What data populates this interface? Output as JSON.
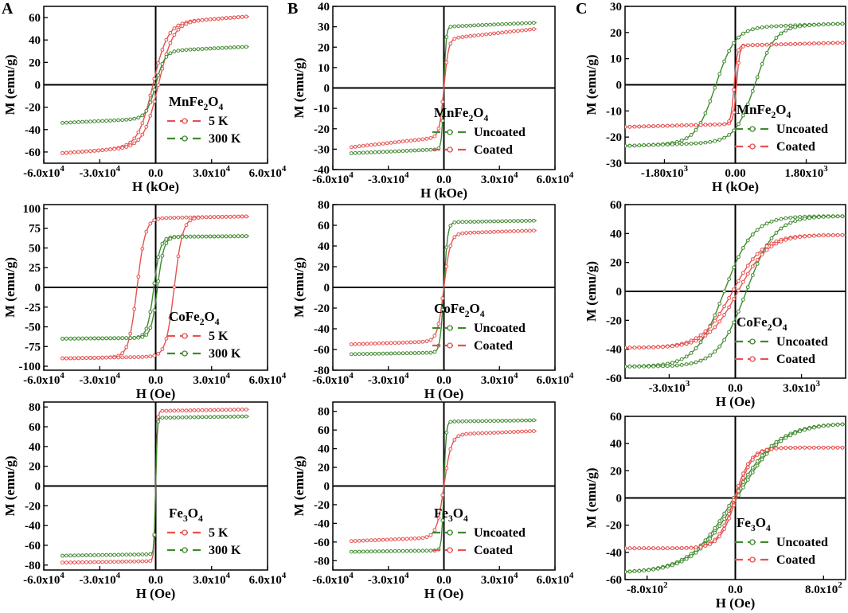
{
  "colors": {
    "red": "#e8504f",
    "green": "#3f8a2e",
    "red_light": "#f4a0a0",
    "green_light": "#8fc07a",
    "axis": "#000000"
  },
  "panel_labels": [
    "A",
    "B",
    "C"
  ],
  "chart_data": [
    {
      "id": "A1",
      "type": "line",
      "ylabel": "M (emu/g)",
      "xlabel": "H (kOe)",
      "xlim": [
        -60000,
        60000
      ],
      "ylim": [
        -70,
        70
      ],
      "xticks": [
        "-6.0x10^4",
        "-3.0x10^4",
        "0.0",
        "3.0x10^4",
        "6.0x10^4"
      ],
      "xtick_values": [
        -60000,
        -30000,
        0,
        30000,
        60000
      ],
      "yticks": [
        "60",
        "40",
        "20",
        "0",
        "-20",
        "-40",
        "-60"
      ],
      "ytick_values": [
        60,
        40,
        20,
        0,
        -20,
        -40,
        -60
      ],
      "compound": "MnFe2O4",
      "legend": [
        "5 K",
        "300 K"
      ],
      "series": [
        {
          "name": "5 K",
          "color": "red",
          "loop": true,
          "ms": 55,
          "hscale": 8000,
          "hc": 1500,
          "hmax": 50000,
          "slope": 0.00012
        },
        {
          "name": "300 K",
          "color": "green",
          "loop": false,
          "ms": 30,
          "hscale": 5000,
          "hc": 0,
          "hmax": 50000,
          "slope": 8e-05
        }
      ]
    },
    {
      "id": "A2",
      "type": "line",
      "ylabel": "M (emu/g)",
      "xlabel": "H (Oe)",
      "xlim": [
        -60000,
        60000
      ],
      "ylim": [
        -105,
        105
      ],
      "xticks": [
        "-6.0x10^4",
        "-3.0x10^4",
        "0.0",
        "3.0x10^4",
        "6.0x10^4"
      ],
      "xtick_values": [
        -60000,
        -30000,
        0,
        30000,
        60000
      ],
      "yticks": [
        "100",
        "75",
        "50",
        "25",
        "0",
        "-25",
        "-50",
        "-75",
        "-100"
      ],
      "ytick_values": [
        100,
        75,
        50,
        25,
        0,
        -25,
        -50,
        -75,
        -100
      ],
      "compound": "CoFe2O4",
      "legend": [
        "5 K",
        "300 K"
      ],
      "series": [
        {
          "name": "5 K",
          "color": "red",
          "loop": true,
          "ms": 88,
          "hscale": 4500,
          "hc": 10000,
          "hmax": 50000,
          "slope": 4e-05
        },
        {
          "name": "300 K",
          "color": "green",
          "loop": true,
          "ms": 64,
          "hscale": 3500,
          "hc": 1000,
          "hmax": 50000,
          "slope": 2e-05
        }
      ]
    },
    {
      "id": "A3",
      "type": "line",
      "ylabel": "M (emu/g)",
      "xlabel": "H (Oe)",
      "xlim": [
        -60000,
        60000
      ],
      "ylim": [
        -85,
        85
      ],
      "xticks": [
        "-6.0x10^4",
        "-3.0x10^4",
        "0.0",
        "3.0x10^4",
        "6.0x10^4"
      ],
      "xtick_values": [
        -60000,
        -30000,
        0,
        30000,
        60000
      ],
      "yticks": [
        "80",
        "60",
        "40",
        "20",
        "0",
        "-20",
        "-40",
        "-60",
        "-80"
      ],
      "ytick_values": [
        80,
        60,
        40,
        20,
        0,
        -20,
        -40,
        -60,
        -80
      ],
      "compound": "Fe3O4",
      "legend": [
        "5 K",
        "300 K"
      ],
      "series": [
        {
          "name": "5 K",
          "color": "red",
          "loop": false,
          "ms": 76,
          "hscale": 900,
          "hc": 0,
          "hmax": 50000,
          "slope": 3e-05
        },
        {
          "name": "300 K",
          "color": "green",
          "loop": false,
          "ms": 69,
          "hscale": 800,
          "hc": 0,
          "hmax": 50000,
          "slope": 3e-05
        }
      ]
    },
    {
      "id": "B1",
      "type": "line",
      "ylabel": "M (emu/g)",
      "xlabel": "H (kOe)",
      "xlim": [
        -60000,
        60000
      ],
      "ylim": [
        -40,
        40
      ],
      "xticks": [
        "-6.0x10^4",
        "-3.0x10^4",
        "0.0",
        "3.0x10^4",
        "6.0x10^4"
      ],
      "xtick_values": [
        -60000,
        -30000,
        0,
        30000,
        60000
      ],
      "yticks": [
        "40",
        "30",
        "20",
        "10",
        "0",
        "-10",
        "-20",
        "-30",
        "-40"
      ],
      "ytick_values": [
        40,
        30,
        20,
        10,
        0,
        -10,
        -20,
        -30,
        -40
      ],
      "compound": "MnFe2O4",
      "legend": [
        "Uncoated",
        "Coated"
      ],
      "series": [
        {
          "name": "Uncoated",
          "color": "green",
          "loop": false,
          "ms": 30,
          "hscale": 1200,
          "hc": 0,
          "hmax": 50000,
          "slope": 4e-05
        },
        {
          "name": "Coated",
          "color": "red",
          "loop": false,
          "ms": 24,
          "hscale": 2500,
          "hc": 0,
          "hmax": 50000,
          "slope": 0.0001
        }
      ]
    },
    {
      "id": "B2",
      "type": "line",
      "ylabel": "M (emu/g)",
      "xlabel": "H (Oe)",
      "xlim": [
        -60000,
        60000
      ],
      "ylim": [
        -80,
        80
      ],
      "xticks": [
        "-6.0x10^4",
        "-3.0x10^4",
        "0.0",
        "3.0x10^4",
        "6.0x10^4"
      ],
      "xtick_values": [
        -60000,
        -30000,
        0,
        30000,
        60000
      ],
      "yticks": [
        "80",
        "60",
        "40",
        "20",
        "0",
        "-20",
        "-40",
        "-60",
        "-80"
      ],
      "ytick_values": [
        80,
        60,
        40,
        20,
        0,
        -20,
        -40,
        -60,
        -80
      ],
      "compound": "CoFe2O4",
      "legend": [
        "Uncoated",
        "Coated"
      ],
      "series": [
        {
          "name": "Uncoated",
          "color": "green",
          "loop": false,
          "ms": 63,
          "hscale": 2000,
          "hc": 0,
          "hmax": 50000,
          "slope": 3e-05
        },
        {
          "name": "Coated",
          "color": "red",
          "loop": false,
          "ms": 52,
          "hscale": 3500,
          "hc": 0,
          "hmax": 50000,
          "slope": 6e-05
        }
      ]
    },
    {
      "id": "B3",
      "type": "line",
      "ylabel": "M (emu/g)",
      "xlabel": "H (Oe)",
      "xlim": [
        -60000,
        60000
      ],
      "ylim": [
        -90,
        90
      ],
      "xticks": [
        "-6.0x10^4",
        "-3.0x10^4",
        "0.0",
        "3.0x10^4",
        "6.0x10^4"
      ],
      "xtick_values": [
        -60000,
        -30000,
        0,
        30000,
        60000
      ],
      "yticks": [
        "80",
        "60",
        "40",
        "20",
        "0",
        "-20",
        "-40",
        "-60",
        "-80"
      ],
      "ytick_values": [
        80,
        60,
        40,
        20,
        0,
        -20,
        -40,
        -60,
        -80
      ],
      "compound": "Fe3O4",
      "legend": [
        "Uncoated",
        "Coated"
      ],
      "series": [
        {
          "name": "Uncoated",
          "color": "green",
          "loop": false,
          "ms": 69,
          "hscale": 1200,
          "hc": 0,
          "hmax": 50000,
          "slope": 3e-05
        },
        {
          "name": "Coated",
          "color": "red",
          "loop": false,
          "ms": 55,
          "hscale": 4000,
          "hc": 0,
          "hmax": 50000,
          "slope": 8e-05
        }
      ]
    },
    {
      "id": "C1",
      "type": "line",
      "ylabel": "M (emu/g)",
      "xlabel": "H (kOe)",
      "xlim": [
        -2800,
        2800
      ],
      "ylim": [
        -30,
        30
      ],
      "xticks": [
        "-1.80x10^3",
        "0.00",
        "1.80x10^3"
      ],
      "xtick_values": [
        -1800,
        0,
        1800
      ],
      "yticks": [
        "30",
        "20",
        "10",
        "0",
        "-10",
        "-20",
        "-30"
      ],
      "ytick_values": [
        30,
        20,
        10,
        0,
        -10,
        -20,
        -30
      ],
      "compound": "MnFe2O4",
      "legend": [
        "Uncoated",
        "Coated"
      ],
      "series": [
        {
          "name": "Uncoated",
          "color": "green",
          "loop": true,
          "ms": 22,
          "hscale": 500,
          "hc": 500,
          "hmax": 2800,
          "slope": 0.0005
        },
        {
          "name": "Coated",
          "color": "red",
          "loop": true,
          "ms": 15,
          "hscale": 80,
          "hc": 30,
          "hmax": 2800,
          "slope": 0.0004
        }
      ]
    },
    {
      "id": "C2",
      "type": "line",
      "ylabel": "M (emu/g)",
      "xlabel": "H (Oe)",
      "xlim": [
        -5000,
        5000
      ],
      "ylim": [
        -60,
        60
      ],
      "xticks": [
        "-3.0x10^3",
        "0.0",
        "3.0x10^3"
      ],
      "xtick_values": [
        -3000,
        0,
        3000
      ],
      "yticks": [
        "60",
        "40",
        "20",
        "0",
        "-20",
        "-40",
        "-60"
      ],
      "ytick_values": [
        60,
        40,
        20,
        0,
        -20,
        -40,
        -60
      ],
      "compound": "CoFe2O4",
      "legend": [
        "Uncoated",
        "Coated"
      ],
      "series": [
        {
          "name": "Uncoated",
          "color": "green",
          "loop": true,
          "ms": 52,
          "hscale": 1300,
          "hc": 500,
          "hmax": 5000,
          "slope": 0.0
        },
        {
          "name": "Coated",
          "color": "red",
          "loop": true,
          "ms": 39,
          "hscale": 1400,
          "hc": 120,
          "hmax": 5000,
          "slope": 0.0
        }
      ]
    },
    {
      "id": "C3",
      "type": "line",
      "ylabel": "M (emu/g)",
      "xlabel": "H (Oe)",
      "xlim": [
        -1000,
        1000
      ],
      "ylim": [
        -60,
        60
      ],
      "xticks": [
        "-8.0x10^2",
        "0.0",
        "8.0x10^2"
      ],
      "xtick_values": [
        -800,
        0,
        800
      ],
      "yticks": [
        "60",
        "40",
        "20",
        "0",
        "-20",
        "-40",
        "-60"
      ],
      "ytick_values": [
        60,
        40,
        20,
        0,
        -20,
        -40,
        -60
      ],
      "compound": "Fe3O4",
      "legend": [
        "Uncoated",
        "Coated"
      ],
      "series": [
        {
          "name": "Uncoated",
          "color": "green",
          "loop": true,
          "ms": 55,
          "hscale": 400,
          "hc": 15,
          "hmax": 1000,
          "slope": 0.0
        },
        {
          "name": "Coated",
          "color": "red",
          "loop": true,
          "ms": 37,
          "hscale": 150,
          "hc": 8,
          "hmax": 1000,
          "slope": 0.0
        }
      ]
    }
  ]
}
